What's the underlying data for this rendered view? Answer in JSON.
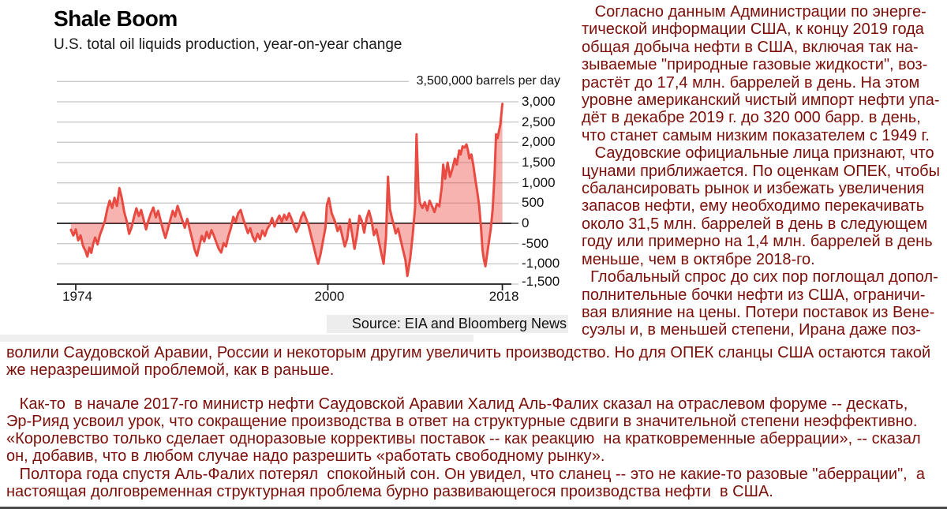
{
  "chart": {
    "title": "Shale Boom",
    "subtitle": "U.S. total oil liquids production, year-on-year change",
    "axis_note": "3,500,000 barrels per day",
    "source": "Source: EIA and Bloomberg News"
  },
  "chart_data": {
    "type": "line",
    "area_fill": true,
    "title": "Shale Boom",
    "subtitle": "U.S. total oil liquids production, year-on-year change",
    "unit": "thousand barrels per day",
    "xlabel": "",
    "ylabel": "3,500,000 barrels per day",
    "xlim": [
      1973.5,
      2018.9
    ],
    "ylim": [
      -1500,
      3500
    ],
    "grid": true,
    "legend": "none",
    "colors": {
      "line": "#e94b42",
      "fill": "#f5b0ac",
      "grid": "#c8c8c8",
      "axis": "#1a1a1a",
      "text": "#111111"
    },
    "y_gridlines": [
      3500,
      3000,
      2500,
      2000,
      1500,
      1000,
      500,
      -500,
      -1000
    ],
    "y_ticks": [
      {
        "v": 3000,
        "label": "3,000"
      },
      {
        "v": 2500,
        "label": "2,500"
      },
      {
        "v": 2000,
        "label": "2,000"
      },
      {
        "v": 1500,
        "label": "1,500"
      },
      {
        "v": 1000,
        "label": "1,000"
      },
      {
        "v": 500,
        "label": "500"
      },
      {
        "v": 0,
        "label": "0"
      },
      {
        "v": -500,
        "label": "-500"
      },
      {
        "v": -1000,
        "label": "-1,000"
      },
      {
        "v": -1500,
        "label": "-1,500"
      }
    ],
    "x_ticks": [
      {
        "v": 1974,
        "label": "1974"
      },
      {
        "v": 2000,
        "label": "2000"
      },
      {
        "v": 2018,
        "label": "2018"
      }
    ],
    "points": [
      [
        1973.5,
        -160
      ],
      [
        1973.75,
        -300
      ],
      [
        1974,
        -150
      ],
      [
        1974.25,
        -420
      ],
      [
        1974.5,
        -300
      ],
      [
        1974.75,
        -560
      ],
      [
        1975,
        -680
      ],
      [
        1975.2,
        -820
      ],
      [
        1975.4,
        -600
      ],
      [
        1975.6,
        -730
      ],
      [
        1975.8,
        -500
      ],
      [
        1976,
        -350
      ],
      [
        1976.25,
        -520
      ],
      [
        1976.5,
        -280
      ],
      [
        1976.75,
        -120
      ],
      [
        1977,
        60
      ],
      [
        1977.25,
        350
      ],
      [
        1977.5,
        560
      ],
      [
        1977.75,
        380
      ],
      [
        1978,
        630
      ],
      [
        1978.25,
        430
      ],
      [
        1978.5,
        870
      ],
      [
        1978.75,
        620
      ],
      [
        1979,
        280
      ],
      [
        1979.25,
        60
      ],
      [
        1979.5,
        -260
      ],
      [
        1979.75,
        -110
      ],
      [
        1980,
        150
      ],
      [
        1980.25,
        370
      ],
      [
        1980.5,
        180
      ],
      [
        1980.75,
        330
      ],
      [
        1981,
        90
      ],
      [
        1981.25,
        -150
      ],
      [
        1981.5,
        70
      ],
      [
        1981.75,
        250
      ],
      [
        1982,
        390
      ],
      [
        1982.25,
        150
      ],
      [
        1982.5,
        310
      ],
      [
        1982.75,
        70
      ],
      [
        1983,
        -170
      ],
      [
        1983.25,
        -360
      ],
      [
        1983.5,
        -140
      ],
      [
        1983.75,
        90
      ],
      [
        1984,
        310
      ],
      [
        1984.25,
        170
      ],
      [
        1984.5,
        430
      ],
      [
        1984.75,
        250
      ],
      [
        1985,
        70
      ],
      [
        1985.25,
        -110
      ],
      [
        1985.5,
        110
      ],
      [
        1985.75,
        -150
      ],
      [
        1986,
        -380
      ],
      [
        1986.25,
        -640
      ],
      [
        1986.5,
        -800
      ],
      [
        1986.75,
        -560
      ],
      [
        1987,
        -310
      ],
      [
        1987.25,
        -450
      ],
      [
        1987.5,
        -210
      ],
      [
        1987.75,
        -370
      ],
      [
        1988,
        -170
      ],
      [
        1988.25,
        -310
      ],
      [
        1988.5,
        -470
      ],
      [
        1988.75,
        -630
      ],
      [
        1989,
        -720
      ],
      [
        1989.25,
        -490
      ],
      [
        1989.5,
        -570
      ],
      [
        1989.75,
        -310
      ],
      [
        1990,
        -120
      ],
      [
        1990.25,
        160
      ],
      [
        1990.5,
        40
      ],
      [
        1990.75,
        250
      ],
      [
        1991,
        330
      ],
      [
        1991.25,
        130
      ],
      [
        1991.5,
        -60
      ],
      [
        1991.75,
        -240
      ],
      [
        1992,
        -120
      ],
      [
        1992.25,
        -330
      ],
      [
        1992.5,
        -450
      ],
      [
        1992.75,
        -260
      ],
      [
        1993,
        -390
      ],
      [
        1993.25,
        -180
      ],
      [
        1993.5,
        -310
      ],
      [
        1993.75,
        -140
      ],
      [
        1994,
        -40
      ],
      [
        1994.25,
        130
      ],
      [
        1994.5,
        -80
      ],
      [
        1994.75,
        70
      ],
      [
        1995,
        190
      ],
      [
        1995.25,
        40
      ],
      [
        1995.5,
        210
      ],
      [
        1995.75,
        90
      ],
      [
        1996,
        250
      ],
      [
        1996.25,
        110
      ],
      [
        1996.5,
        -60
      ],
      [
        1996.75,
        -210
      ],
      [
        1997,
        -80
      ],
      [
        1997.25,
        150
      ],
      [
        1997.5,
        270
      ],
      [
        1997.75,
        120
      ],
      [
        1998,
        -50
      ],
      [
        1998.25,
        -290
      ],
      [
        1998.5,
        -530
      ],
      [
        1998.75,
        -780
      ],
      [
        1999,
        -1000
      ],
      [
        1999.25,
        -760
      ],
      [
        1999.5,
        -430
      ],
      [
        1999.75,
        -110
      ],
      [
        1999.9,
        450
      ],
      [
        2000.1,
        620
      ],
      [
        2000.4,
        250
      ],
      [
        2000.75,
        40
      ],
      [
        2001,
        -190
      ],
      [
        2001.25,
        -70
      ],
      [
        2001.5,
        -330
      ],
      [
        2001.75,
        -570
      ],
      [
        2002,
        -380
      ],
      [
        2002.25,
        100
      ],
      [
        2002.5,
        -250
      ],
      [
        2002.75,
        -630
      ],
      [
        2003,
        -300
      ],
      [
        2003.25,
        190
      ],
      [
        2003.5,
        60
      ],
      [
        2003.75,
        -230
      ],
      [
        2004,
        130
      ],
      [
        2004.25,
        310
      ],
      [
        2004.5,
        80
      ],
      [
        2004.75,
        -290
      ],
      [
        2005,
        -150
      ],
      [
        2005.25,
        -430
      ],
      [
        2005.5,
        -720
      ],
      [
        2005.75,
        -1000
      ],
      [
        2006,
        -350
      ],
      [
        2006.2,
        1150
      ],
      [
        2006.4,
        350
      ],
      [
        2006.6,
        150
      ],
      [
        2006.8,
        -50
      ],
      [
        2007,
        -250
      ],
      [
        2007.25,
        -130
      ],
      [
        2007.5,
        -400
      ],
      [
        2007.75,
        -650
      ],
      [
        2008,
        -900
      ],
      [
        2008.2,
        -1300
      ],
      [
        2008.5,
        -850
      ],
      [
        2008.75,
        -300
      ],
      [
        2009,
        400
      ],
      [
        2009.15,
        2200
      ],
      [
        2009.35,
        800
      ],
      [
        2009.5,
        500
      ],
      [
        2009.75,
        380
      ],
      [
        2010,
        520
      ],
      [
        2010.25,
        320
      ],
      [
        2010.5,
        560
      ],
      [
        2010.75,
        420
      ],
      [
        2011,
        280
      ],
      [
        2011.25,
        480
      ],
      [
        2011.5,
        420
      ],
      [
        2011.75,
        900
      ],
      [
        2011.9,
        1450
      ],
      [
        2012.1,
        1100
      ],
      [
        2012.35,
        1500
      ],
      [
        2012.6,
        1150
      ],
      [
        2012.85,
        1350
      ],
      [
        2013.1,
        1600
      ],
      [
        2013.3,
        1450
      ],
      [
        2013.55,
        1800
      ],
      [
        2013.7,
        1700
      ],
      [
        2013.9,
        1900
      ],
      [
        2014.1,
        1870
      ],
      [
        2014.3,
        1950
      ],
      [
        2014.45,
        1800
      ],
      [
        2014.6,
        1600
      ],
      [
        2014.8,
        1700
      ],
      [
        2015,
        1450
      ],
      [
        2015.2,
        1100
      ],
      [
        2015.4,
        800
      ],
      [
        2015.6,
        450
      ],
      [
        2015.8,
        -100
      ],
      [
        2015.95,
        -650
      ],
      [
        2016.1,
        -900
      ],
      [
        2016.25,
        -1060
      ],
      [
        2016.5,
        -650
      ],
      [
        2016.8,
        -150
      ],
      [
        2017,
        350
      ],
      [
        2017.2,
        1200
      ],
      [
        2017.35,
        2200
      ],
      [
        2017.5,
        2100
      ],
      [
        2017.65,
        2280
      ],
      [
        2017.8,
        2450
      ],
      [
        2017.9,
        2700
      ],
      [
        2018,
        2950
      ]
    ]
  },
  "article": {
    "text_color": "#7b0e08",
    "right_column": [
      {
        "lines": [
          "   Согласно данным Администрации по энерге-",
          "тической информации США, к концу 2019 года",
          "общая добыча нефти в США, включая так на-",
          "зываемые \"природные газовые жидкости\", воз-",
          "растёт до 17,4 млн. баррелей в день. На этом",
          "уровне американский чистый импорт нефти упа-",
          "дёт в декабре 2019 г. до 320 000 барр. в день,",
          "что станет самым низким показателем с 1949 г."
        ]
      },
      {
        "lines": [
          "   Саудовские официальные лица признают, что",
          "цунами приближается. По оценкам ОПЕК, чтобы",
          "сбалансировать рынок и избежать увеличения",
          "запасов нефти, ему необходимо перекачивать",
          "около 31,5 млн. баррелей в день в следующем",
          "году или примерно на 1,4 млн. баррелей в день",
          "меньше, чем в октябре 2018-го."
        ]
      },
      {
        "lines": [
          "  Глобальный спрос до сих пор поглощал допол-",
          "полнительные бочки нефти из США, ограничи-",
          "вая влияние на цены. Потери поставок из Вене-",
          "суэлы и, в меньшей степени, Ирана даже поз-"
        ]
      }
    ],
    "bottom_paragraphs": [
      {
        "lines": [
          "волили Саудовской Аравии, России и некоторым другим увеличить производство. Но для ОПЕК сланцы США остаются такой",
          "же неразрешимой проблемой, как в раньше."
        ]
      },
      {
        "gap": true,
        "lines": [
          "   Как-то  в начале 2017-го министр нефти Саудовской Аравии Халид Аль-Фалих сказал на отраслевом форуме -- дескать,",
          "Эр-Рияд усвоил урок, что сокращение производства в ответ на структурные сдвиги в значительной степени неэффективно.",
          "«Королевство только сделает одноразовые коррективы поставок -- как реакцию  на кратковременные аберрации», -- сказал",
          "он, добавив, что в любом случае надо разрешить «работать свободному рынку»."
        ]
      },
      {
        "lines": [
          "   Полтора года спустя Аль-Фалих потерял  спокойный сон. Он увидел, что сланец -- это не какие-то разовые \"аберрации\",  а",
          "настоящая долговременная структурная проблема бурно развивающегося производства нефти  в США."
        ]
      }
    ]
  }
}
